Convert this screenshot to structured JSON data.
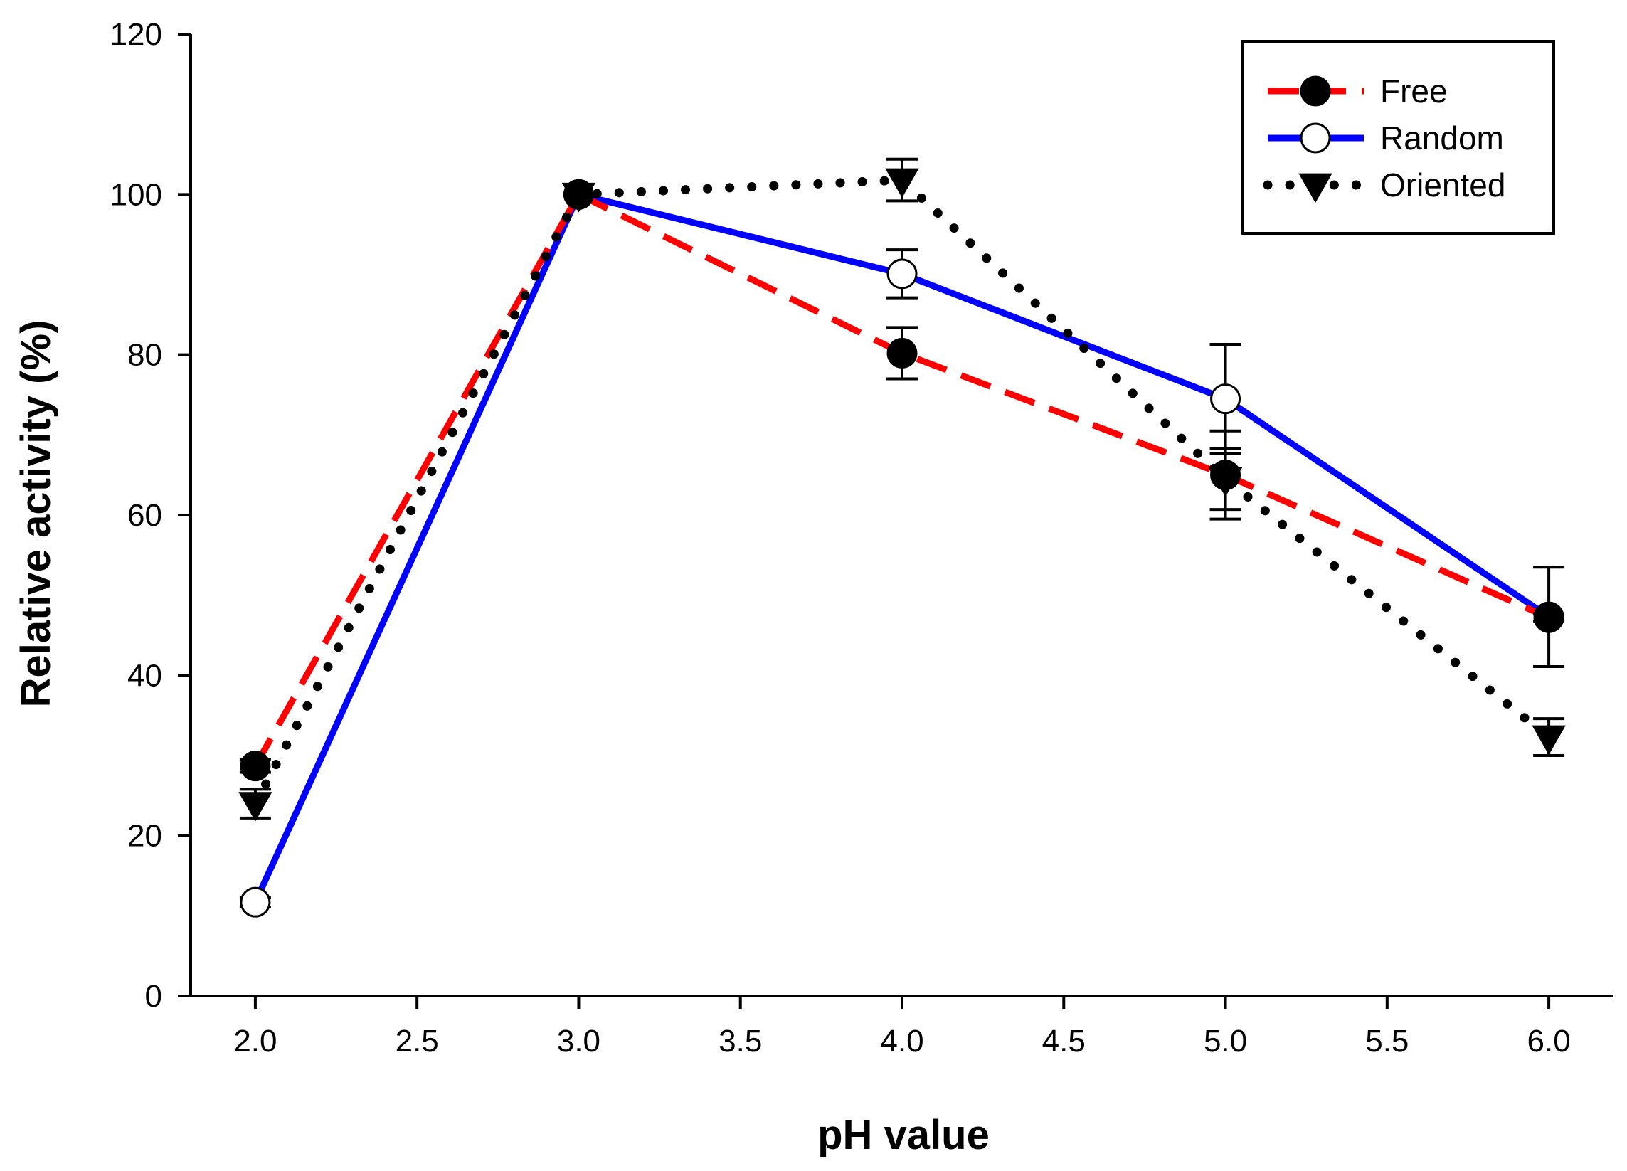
{
  "chart_data": {
    "type": "line",
    "title": "",
    "xlabel": "pH value",
    "ylabel": "Relative activity (%)",
    "xlim": [
      1.8,
      6.2
    ],
    "ylim": [
      0,
      120
    ],
    "x_ticks": [
      "2.0",
      "2.5",
      "3.0",
      "3.5",
      "4.0",
      "4.5",
      "5.0",
      "5.5",
      "6.0"
    ],
    "x_tick_values": [
      2.0,
      2.5,
      3.0,
      3.5,
      4.0,
      4.5,
      5.0,
      5.5,
      6.0
    ],
    "y_ticks": [
      "0",
      "20",
      "40",
      "60",
      "80",
      "100",
      "120"
    ],
    "y_tick_values": [
      0,
      20,
      40,
      60,
      80,
      100,
      120
    ],
    "grid": false,
    "legend_position": "top-right",
    "x": [
      2.0,
      3.0,
      4.0,
      5.0,
      6.0
    ],
    "series": [
      {
        "name": "Free",
        "values": [
          28.7,
          100,
          80.2,
          65.0,
          47.2
        ],
        "errors": [
          0.8,
          0,
          3.2,
          5.5,
          0.5
        ],
        "color": "#ff0000",
        "line_style": "dashed",
        "marker": "filled-circle"
      },
      {
        "name": "Random",
        "values": [
          11.7,
          100,
          90.1,
          74.5,
          47.3
        ],
        "errors": [
          0.6,
          0,
          3.0,
          6.8,
          6.2
        ],
        "color": "#0000ff",
        "line_style": "solid",
        "marker": "open-circle"
      },
      {
        "name": "Oriented",
        "values": [
          24.0,
          100,
          101.8,
          64.5,
          32.3
        ],
        "errors": [
          1.8,
          0,
          2.6,
          3.8,
          2.3
        ],
        "color": "#000000",
        "line_style": "dotted",
        "marker": "filled-triangle-down"
      }
    ]
  }
}
